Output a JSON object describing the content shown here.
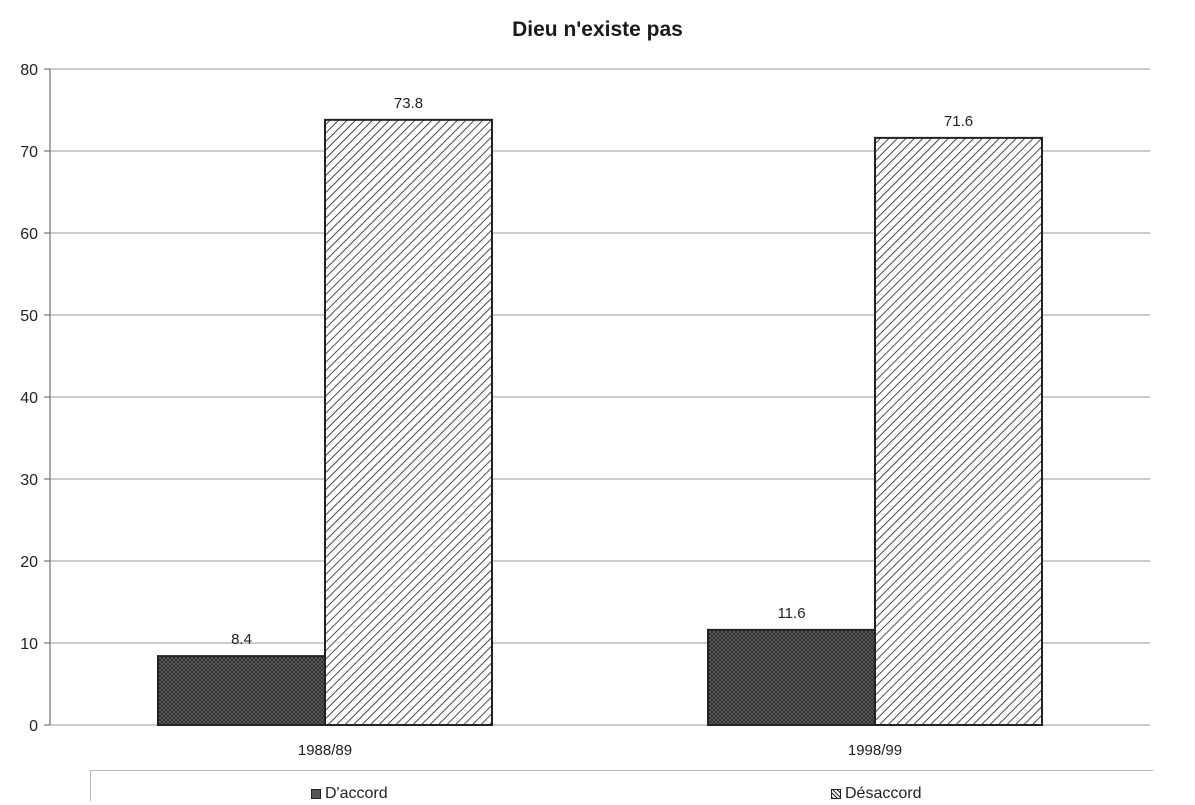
{
  "chart_data": {
    "type": "bar",
    "title": "Dieu n'existe pas",
    "categories": [
      "1988/89",
      "1998/99"
    ],
    "series": [
      {
        "name": "D'accord",
        "values": [
          8.4,
          11.6
        ],
        "labels": [
          "8.4",
          "11.6"
        ],
        "pattern": "crosshatch"
      },
      {
        "name": "Désaccord",
        "values": [
          73.8,
          71.6
        ],
        "labels": [
          "73.8",
          "71.6"
        ],
        "pattern": "diagonal"
      }
    ],
    "ylim": [
      0,
      80
    ],
    "yticks": [
      0,
      10,
      20,
      30,
      40,
      50,
      60,
      70,
      80
    ],
    "grid": true,
    "legend_position": "bottom"
  },
  "colors": {
    "crosshatch": "#555555",
    "stroke": "#222222",
    "grid": "#9a9a9a"
  }
}
